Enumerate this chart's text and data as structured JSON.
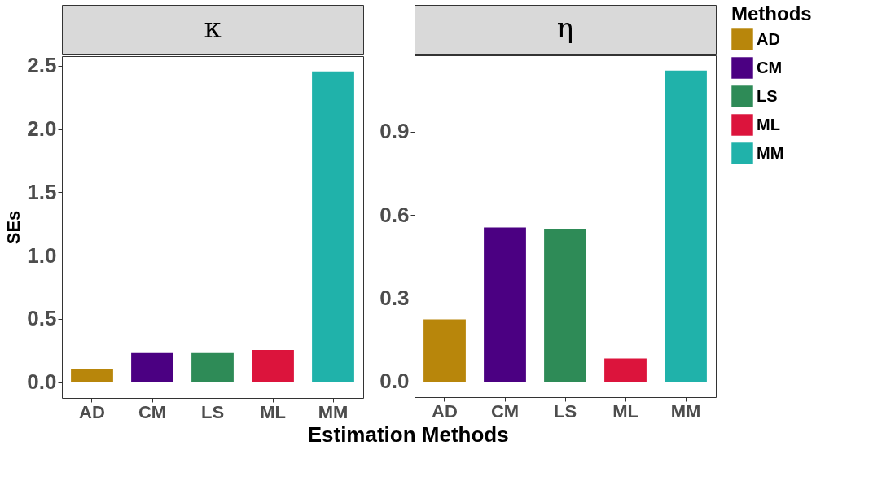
{
  "chart_data": [
    {
      "type": "bar",
      "title": "κ",
      "ylabel": "SEs",
      "xlabel": "Estimation Methods",
      "categories": [
        "AD",
        "CM",
        "LS",
        "ML",
        "MM"
      ],
      "series": [
        {
          "name": "AD",
          "color": "#b8860b",
          "values": [
            0.108,
            null,
            null,
            null,
            null
          ]
        },
        {
          "name": "CM",
          "color": "#4b0082",
          "values": [
            null,
            0.231,
            null,
            null,
            null
          ]
        },
        {
          "name": "LS",
          "color": "#2e8b57",
          "values": [
            null,
            null,
            0.231,
            null,
            null
          ]
        },
        {
          "name": "ML",
          "color": "#dc143c",
          "values": [
            null,
            null,
            null,
            0.256,
            null
          ]
        },
        {
          "name": "MM",
          "color": "#20b2aa",
          "values": [
            null,
            null,
            null,
            null,
            2.457
          ]
        }
      ],
      "ylim": [
        -0.124,
        2.577
      ],
      "yticks": [
        {
          "value": 0,
          "label": "0.0"
        },
        0.5,
        {
          "value": 1,
          "label": "1.0"
        },
        1.5,
        {
          "value": 2,
          "label": "2.0"
        },
        2.5
      ],
      "grid": false,
      "legend": "right"
    },
    {
      "type": "bar",
      "title": "η",
      "categories": [
        "AD",
        "CM",
        "LS",
        "ML",
        "MM"
      ],
      "series": [
        {
          "name": "AD",
          "color": "#b8860b",
          "values": [
            0.224,
            null,
            null,
            null,
            null
          ]
        },
        {
          "name": "CM",
          "color": "#4b0082",
          "values": [
            null,
            0.555,
            null,
            null,
            null
          ]
        },
        {
          "name": "LS",
          "color": "#2e8b57",
          "values": [
            null,
            null,
            0.551,
            null,
            null
          ]
        },
        {
          "name": "ML",
          "color": "#dc143c",
          "values": [
            null,
            null,
            null,
            0.083,
            null
          ]
        },
        {
          "name": "MM",
          "color": "#20b2aa",
          "values": [
            null,
            null,
            null,
            null,
            1.12
          ]
        }
      ],
      "ylim": [
        -0.056,
        1.175
      ],
      "yticks": [
        {
          "value": 0,
          "label": "0.0"
        },
        0.3,
        0.6,
        0.9
      ],
      "grid": false,
      "legend": "right",
      "legend_title": "Methods"
    }
  ]
}
